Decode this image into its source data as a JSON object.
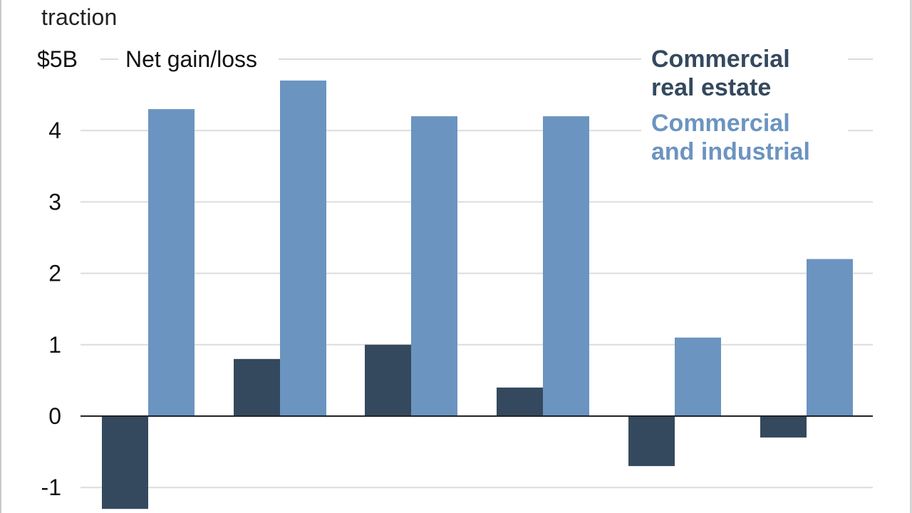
{
  "title_fragment": "traction",
  "chart_data": {
    "type": "bar",
    "title": "traction",
    "ylabel": "Net gain/loss",
    "ylim": [
      -1.3,
      5
    ],
    "y_ticks": [
      {
        "value": 5,
        "label": "$5B"
      },
      {
        "value": 4,
        "label": "4"
      },
      {
        "value": 3,
        "label": "3"
      },
      {
        "value": 2,
        "label": "2"
      },
      {
        "value": 1,
        "label": "1"
      },
      {
        "value": 0,
        "label": "0"
      },
      {
        "value": -1,
        "label": "-1"
      }
    ],
    "categories": [
      "",
      "",
      "",
      "",
      "",
      ""
    ],
    "series": [
      {
        "name": "Commercial real estate",
        "name_lines": [
          "Commercial",
          "real estate"
        ],
        "color": "#34495e",
        "values": [
          -1.3,
          0.8,
          1.0,
          0.4,
          -0.7,
          -0.3
        ]
      },
      {
        "name": "Commercial and industrial",
        "name_lines": [
          "Commercial",
          "and industrial"
        ],
        "color": "#6b94c0",
        "values": [
          4.3,
          4.7,
          4.2,
          4.2,
          1.1,
          2.2
        ]
      }
    ],
    "grid": true,
    "legend_position": "top-right"
  }
}
